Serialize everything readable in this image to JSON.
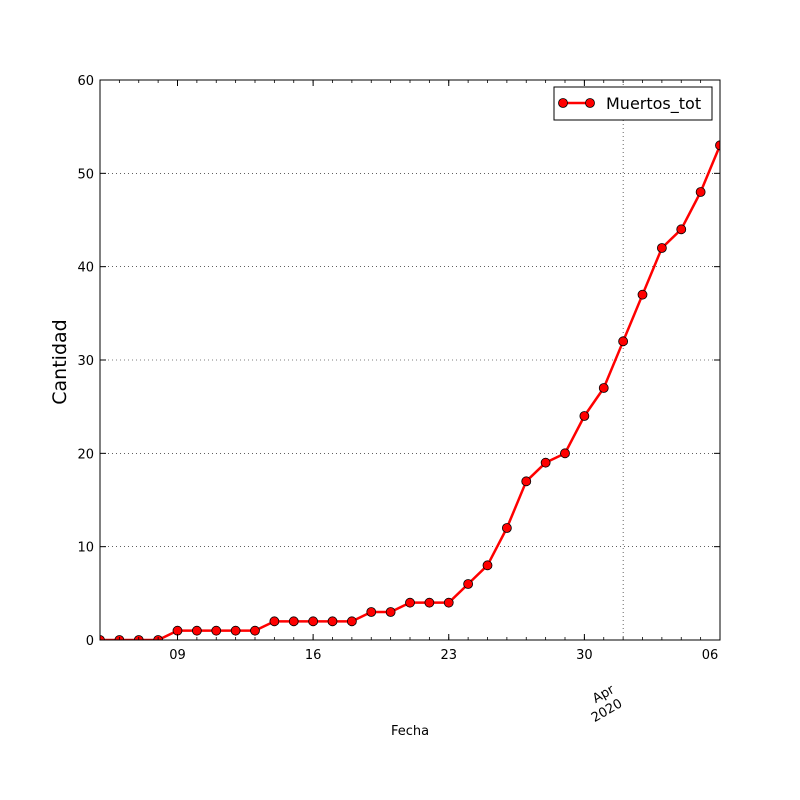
{
  "chart_data": {
    "type": "line",
    "ylabel": "Cantidad",
    "xlabel": "Fecha",
    "ylim": [
      0,
      60
    ],
    "xlim": [
      "2020-03-05",
      "2020-04-06"
    ],
    "yticks": [
      "0",
      "10",
      "20",
      "30",
      "40",
      "50",
      "60"
    ],
    "xticks": [
      {
        "date": "2020-03-09",
        "label": "09"
      },
      {
        "date": "2020-03-16",
        "label": "16"
      },
      {
        "date": "2020-03-23",
        "label": "23"
      },
      {
        "date": "2020-03-30",
        "label": "30"
      },
      {
        "date": "2020-04-06",
        "label": "06"
      }
    ],
    "month_label": {
      "date": "2020-04-01",
      "month": "Apr",
      "year": "2020"
    },
    "grid": true,
    "legend_position": "top-right",
    "series": [
      {
        "name": "Muertos_tot",
        "color": "#ff0000",
        "x": [
          "2020-03-05",
          "2020-03-06",
          "2020-03-07",
          "2020-03-08",
          "2020-03-09",
          "2020-03-10",
          "2020-03-11",
          "2020-03-12",
          "2020-03-13",
          "2020-03-14",
          "2020-03-15",
          "2020-03-16",
          "2020-03-17",
          "2020-03-18",
          "2020-03-19",
          "2020-03-20",
          "2020-03-21",
          "2020-03-22",
          "2020-03-23",
          "2020-03-24",
          "2020-03-25",
          "2020-03-26",
          "2020-03-27",
          "2020-03-28",
          "2020-03-29",
          "2020-03-30",
          "2020-03-31",
          "2020-04-01",
          "2020-04-02",
          "2020-04-03",
          "2020-04-04",
          "2020-04-05",
          "2020-04-06"
        ],
        "values": [
          0,
          0,
          0,
          0,
          1,
          1,
          1,
          1,
          1,
          2,
          2,
          2,
          2,
          2,
          3,
          3,
          4,
          4,
          4,
          6,
          8,
          12,
          17,
          19,
          20,
          24,
          27,
          32,
          37,
          42,
          44,
          48,
          53
        ]
      }
    ]
  }
}
